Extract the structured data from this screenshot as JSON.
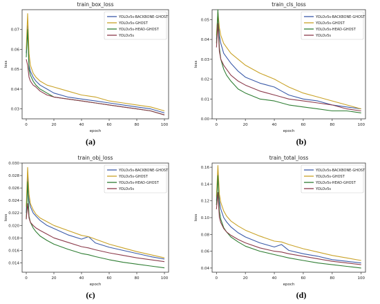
{
  "colors": {
    "YOLOv5s-BACKBONE-GHOST": "#3b5ba9",
    "YOLOv5s-GHOST": "#c9a227",
    "YOLOv5s-HEAD-GHOST": "#2e7d32",
    "YOLOv5s": "#8b3a4a"
  },
  "chart_data": [
    {
      "type": "line",
      "panel": "(a)",
      "title": "train_box_loss",
      "xlabel": "epoch",
      "ylabel": "loss",
      "xlim": [
        -3,
        103
      ],
      "ylim": [
        0.025,
        0.08
      ],
      "xticks": [
        0,
        20,
        40,
        60,
        80,
        100
      ],
      "yticks": [
        0.03,
        0.04,
        0.05,
        0.06,
        0.07
      ],
      "ytick_labels": [
        "0.03",
        "0.04",
        "0.05",
        "0.06",
        "0.07"
      ],
      "legend": "top-right",
      "x": [
        0,
        1,
        2,
        3,
        5,
        7,
        10,
        15,
        20,
        30,
        40,
        50,
        60,
        70,
        80,
        90,
        100
      ],
      "series": [
        {
          "name": "YOLOv5s-BACKBONE-GHOST",
          "values": [
            0.058,
            0.072,
            0.052,
            0.049,
            0.046,
            0.044,
            0.042,
            0.04,
            0.038,
            0.036,
            0.035,
            0.034,
            0.033,
            0.032,
            0.031,
            0.03,
            0.028
          ]
        },
        {
          "name": "YOLOv5s-GHOST",
          "values": [
            0.06,
            0.078,
            0.058,
            0.052,
            0.048,
            0.046,
            0.044,
            0.042,
            0.041,
            0.039,
            0.037,
            0.036,
            0.034,
            0.033,
            0.032,
            0.031,
            0.029
          ]
        },
        {
          "name": "YOLOv5s-HEAD-GHOST",
          "values": [
            0.056,
            0.07,
            0.05,
            0.047,
            0.044,
            0.042,
            0.04,
            0.038,
            0.036,
            0.035,
            0.034,
            0.033,
            0.032,
            0.031,
            0.03,
            0.029,
            0.027
          ]
        },
        {
          "name": "YOLOv5s",
          "values": [
            0.055,
            0.052,
            0.046,
            0.044,
            0.042,
            0.041,
            0.039,
            0.037,
            0.036,
            0.035,
            0.034,
            0.033,
            0.032,
            0.031,
            0.03,
            0.029,
            0.027
          ]
        }
      ]
    },
    {
      "type": "line",
      "panel": "(b)",
      "title": "train_cls_loss",
      "xlabel": "epoch",
      "ylabel": "loss",
      "xlim": [
        -3,
        103
      ],
      "ylim": [
        0.0,
        0.055
      ],
      "xticks": [
        0,
        20,
        40,
        60,
        80,
        100
      ],
      "yticks": [
        0.0,
        0.01,
        0.02,
        0.03,
        0.04,
        0.05
      ],
      "ytick_labels": [
        "0.00",
        "0.01",
        "0.02",
        "0.03",
        "0.04",
        "0.05"
      ],
      "legend": "top-right",
      "x": [
        0,
        1,
        2,
        3,
        5,
        7,
        10,
        15,
        20,
        30,
        40,
        45,
        50,
        60,
        70,
        80,
        90,
        100
      ],
      "series": [
        {
          "name": "YOLOv5s-BACKBONE-GHOST",
          "values": [
            0.04,
            0.053,
            0.042,
            0.038,
            0.033,
            0.031,
            0.028,
            0.024,
            0.021,
            0.018,
            0.016,
            0.014,
            0.012,
            0.01,
            0.009,
            0.007,
            0.006,
            0.005
          ]
        },
        {
          "name": "YOLOv5s-GHOST",
          "values": [
            0.042,
            0.054,
            0.046,
            0.042,
            0.038,
            0.036,
            0.033,
            0.03,
            0.027,
            0.023,
            0.02,
            0.018,
            0.016,
            0.013,
            0.011,
            0.009,
            0.007,
            0.005
          ]
        },
        {
          "name": "YOLOv5s-HEAD-GHOST",
          "values": [
            0.038,
            0.055,
            0.036,
            0.03,
            0.025,
            0.022,
            0.019,
            0.015,
            0.013,
            0.01,
            0.009,
            0.008,
            0.007,
            0.006,
            0.005,
            0.004,
            0.004,
            0.003
          ]
        },
        {
          "name": "YOLOv5s",
          "values": [
            0.036,
            0.048,
            0.034,
            0.03,
            0.027,
            0.025,
            0.022,
            0.019,
            0.017,
            0.014,
            0.012,
            0.011,
            0.01,
            0.009,
            0.008,
            0.007,
            0.005,
            0.004
          ]
        }
      ]
    },
    {
      "type": "line",
      "panel": "(c)",
      "title": "train_obj_loss",
      "xlabel": "epoch",
      "ylabel": "loss",
      "xlim": [
        -3,
        103
      ],
      "ylim": [
        0.0125,
        0.03
      ],
      "xticks": [
        0,
        20,
        40,
        60,
        80,
        100
      ],
      "yticks": [
        0.014,
        0.016,
        0.018,
        0.02,
        0.022,
        0.024,
        0.026,
        0.028,
        0.03
      ],
      "ytick_labels": [
        "0.014",
        "0.016",
        "0.018",
        "0.020",
        "0.022",
        "0.024",
        "0.026",
        "0.028",
        "0.030"
      ],
      "legend": "top-right",
      "x": [
        0,
        1,
        2,
        3,
        5,
        7,
        10,
        15,
        20,
        30,
        40,
        45,
        50,
        60,
        70,
        80,
        90,
        100
      ],
      "series": [
        {
          "name": "YOLOv5s-BACKBONE-GHOST",
          "values": [
            0.022,
            0.028,
            0.024,
            0.023,
            0.022,
            0.0215,
            0.0208,
            0.02,
            0.0195,
            0.0185,
            0.0178,
            0.0182,
            0.0172,
            0.0165,
            0.016,
            0.0155,
            0.015,
            0.0146
          ]
        },
        {
          "name": "YOLOv5s-GHOST",
          "values": [
            0.023,
            0.0293,
            0.025,
            0.0235,
            0.0225,
            0.0218,
            0.0212,
            0.0206,
            0.02,
            0.0192,
            0.0184,
            0.0182,
            0.0178,
            0.017,
            0.0164,
            0.0158,
            0.0153,
            0.0148
          ]
        },
        {
          "name": "YOLOv5s-HEAD-GHOST",
          "values": [
            0.021,
            0.027,
            0.0215,
            0.0205,
            0.0196,
            0.019,
            0.0183,
            0.0176,
            0.017,
            0.0162,
            0.0155,
            0.0153,
            0.015,
            0.0145,
            0.0141,
            0.0138,
            0.0135,
            0.0132
          ]
        },
        {
          "name": "YOLOv5s",
          "values": [
            0.021,
            0.0235,
            0.0212,
            0.0205,
            0.02,
            0.0196,
            0.0192,
            0.0186,
            0.018,
            0.0173,
            0.0166,
            0.0164,
            0.0161,
            0.0156,
            0.0152,
            0.0148,
            0.0145,
            0.0142
          ]
        }
      ]
    },
    {
      "type": "line",
      "panel": "(d)",
      "title": "train_total_loss",
      "xlabel": "epoch",
      "ylabel": "loss",
      "xlim": [
        -3,
        103
      ],
      "ylim": [
        0.035,
        0.165
      ],
      "xticks": [
        0,
        20,
        40,
        60,
        80,
        100
      ],
      "yticks": [
        0.04,
        0.06,
        0.08,
        0.1,
        0.12,
        0.14,
        0.16
      ],
      "ytick_labels": [
        "0.04",
        "0.06",
        "0.08",
        "0.10",
        "0.12",
        "0.14",
        "0.16"
      ],
      "legend": "top-right",
      "x": [
        0,
        1,
        2,
        3,
        5,
        7,
        10,
        15,
        20,
        30,
        40,
        45,
        50,
        60,
        70,
        80,
        90,
        100
      ],
      "series": [
        {
          "name": "YOLOv5s-BACKBONE-GHOST",
          "values": [
            0.12,
            0.155,
            0.12,
            0.11,
            0.1,
            0.095,
            0.089,
            0.082,
            0.077,
            0.07,
            0.065,
            0.068,
            0.061,
            0.057,
            0.054,
            0.05,
            0.048,
            0.046
          ]
        },
        {
          "name": "YOLOv5s-GHOST",
          "values": [
            0.125,
            0.162,
            0.128,
            0.118,
            0.108,
            0.102,
            0.096,
            0.09,
            0.085,
            0.078,
            0.072,
            0.071,
            0.068,
            0.063,
            0.059,
            0.055,
            0.052,
            0.049
          ]
        },
        {
          "name": "YOLOv5s-HEAD-GHOST",
          "values": [
            0.115,
            0.15,
            0.108,
            0.098,
            0.088,
            0.083,
            0.077,
            0.071,
            0.066,
            0.06,
            0.056,
            0.054,
            0.052,
            0.049,
            0.046,
            0.044,
            0.042,
            0.04
          ]
        },
        {
          "name": "YOLOv5s",
          "values": [
            0.11,
            0.13,
            0.1,
            0.094,
            0.087,
            0.083,
            0.079,
            0.074,
            0.07,
            0.064,
            0.06,
            0.059,
            0.057,
            0.054,
            0.051,
            0.048,
            0.046,
            0.044
          ]
        }
      ]
    }
  ]
}
